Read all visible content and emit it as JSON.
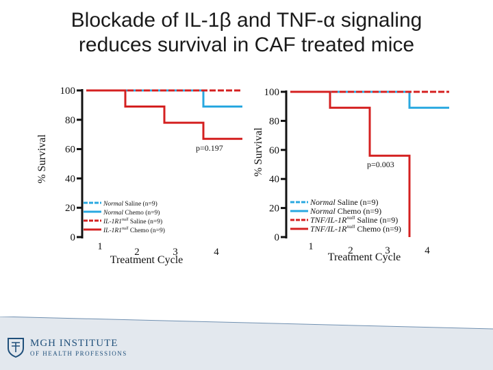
{
  "title_line1": "Blockade of IL-1β and TNF-α signaling",
  "title_line2": "reduces survival in CAF treated mice",
  "logo": {
    "line1": "MGH INSTITUTE",
    "line2": "OF HEALTH PROFESSIONS"
  },
  "chart_data": [
    {
      "type": "line",
      "step": true,
      "xlabel": "Treatment Cycle",
      "ylabel": "% Survival",
      "x_ticks": [
        "1",
        "2",
        "3",
        "4"
      ],
      "y_ticks": [
        "0",
        "20",
        "40",
        "60",
        "80",
        "100"
      ],
      "xlim": [
        0,
        4
      ],
      "ylim": [
        0,
        100
      ],
      "annotation": "p=0.197",
      "legend": [
        {
          "italic": "Normal",
          "rest": " Saline (n=9)",
          "sup": ""
        },
        {
          "italic": "Normal",
          "rest": " Chemo (n=9)",
          "sup": ""
        },
        {
          "italic": "IL-1R1",
          "sup": "null",
          "rest": " Saline (n=9)"
        },
        {
          "italic": "IL-1R1",
          "sup": "null",
          "rest": " Chemo (n=9)"
        }
      ],
      "series": [
        {
          "color": "#29a8e0",
          "dashed": true,
          "points": [
            [
              0,
              100
            ],
            [
              4,
              100
            ]
          ]
        },
        {
          "color": "#29a8e0",
          "dashed": false,
          "points": [
            [
              0,
              100
            ],
            [
              3,
              100
            ],
            [
              3,
              89
            ],
            [
              4,
              89
            ]
          ]
        },
        {
          "color": "#d42020",
          "dashed": true,
          "points": [
            [
              0,
              100
            ],
            [
              4,
              100
            ]
          ]
        },
        {
          "color": "#d42020",
          "dashed": false,
          "points": [
            [
              0,
              100
            ],
            [
              1,
              100
            ],
            [
              1,
              89
            ],
            [
              2,
              89
            ],
            [
              2,
              78
            ],
            [
              3,
              78
            ],
            [
              3,
              67
            ],
            [
              4,
              67
            ]
          ]
        }
      ]
    },
    {
      "type": "line",
      "step": true,
      "xlabel": "Treatment Cycle",
      "ylabel": "% Survival",
      "x_ticks": [
        "1",
        "2",
        "3",
        "4"
      ],
      "y_ticks": [
        "0",
        "20",
        "40",
        "60",
        "80",
        "100"
      ],
      "xlim": [
        0,
        4
      ],
      "ylim": [
        0,
        100
      ],
      "annotation": "p=0.003",
      "legend": [
        {
          "italic": "Normal",
          "rest": " Saline (n=9)",
          "sup": ""
        },
        {
          "italic": "Normal",
          "rest": " Chemo (n=9)",
          "sup": ""
        },
        {
          "italic": "TNF/IL-1R",
          "sup": "null",
          "rest": " Saline (n=9)"
        },
        {
          "italic": "TNF/IL-1R",
          "sup": "null",
          "rest": " Chemo (n=9)"
        }
      ],
      "series": [
        {
          "color": "#29a8e0",
          "dashed": true,
          "points": [
            [
              0,
              100
            ],
            [
              4,
              100
            ]
          ]
        },
        {
          "color": "#29a8e0",
          "dashed": false,
          "points": [
            [
              0,
              100
            ],
            [
              3,
              100
            ],
            [
              3,
              89
            ],
            [
              4,
              89
            ]
          ]
        },
        {
          "color": "#d42020",
          "dashed": true,
          "points": [
            [
              0,
              100
            ],
            [
              4,
              100
            ]
          ]
        },
        {
          "color": "#d42020",
          "dashed": false,
          "points": [
            [
              0,
              100
            ],
            [
              1,
              100
            ],
            [
              1,
              89
            ],
            [
              2,
              89
            ],
            [
              2,
              56
            ],
            [
              3,
              56
            ],
            [
              3,
              0
            ]
          ]
        }
      ]
    }
  ]
}
